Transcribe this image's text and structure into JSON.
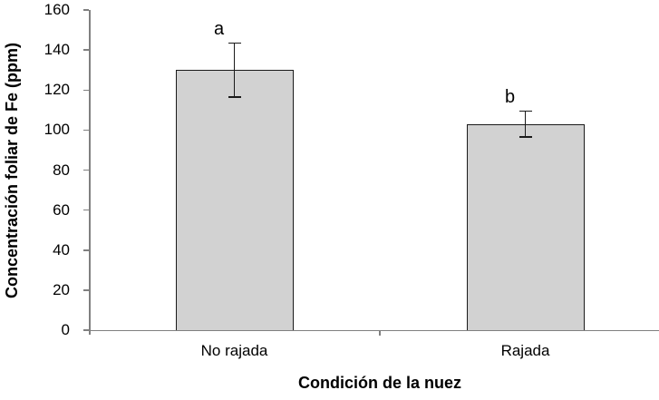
{
  "chart_data": {
    "type": "bar",
    "title": "",
    "categories": [
      "No rajada",
      "Rajada"
    ],
    "values": [
      130,
      103
    ],
    "error_bars": [
      13.5,
      6.5
    ],
    "sig_letters": [
      "a",
      "b"
    ],
    "xlabel": "Condición de la nuez",
    "ylabel": "Concentración foliar de Fe (ppm)",
    "ylim": [
      0,
      160
    ],
    "yticks": [
      0,
      20,
      40,
      60,
      80,
      100,
      120,
      140,
      160
    ],
    "grid": false,
    "legend": false,
    "colors": {
      "bar_fill": "#d2d2d2",
      "bar_border": "#1a1a1a",
      "error_bar": "#1a1a1a",
      "axis": "#808080",
      "text": "#000000"
    }
  }
}
